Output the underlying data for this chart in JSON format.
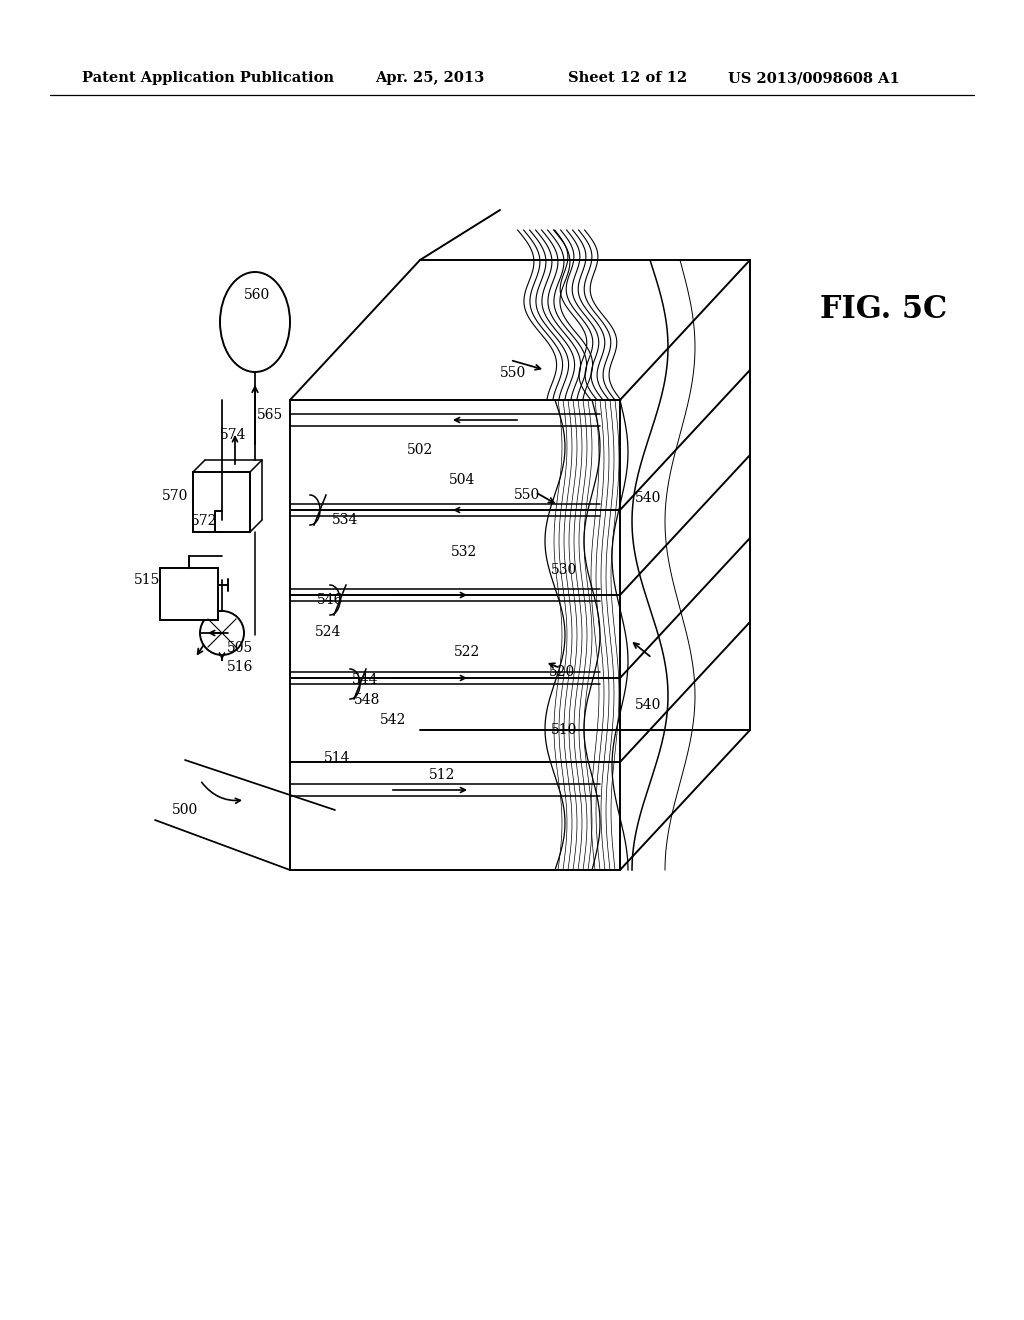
{
  "bg_color": "#ffffff",
  "lc": "#000000",
  "header_left": "Patent Application Publication",
  "header_mid1": "Apr. 25, 2013",
  "header_mid2": "Sheet 12 of 12",
  "header_right": "US 2013/0098608 A1",
  "fig_label": "FIG. 5C",
  "header_fontsize": 10.5,
  "fig_fontsize": 22,
  "label_fontsize": 10
}
